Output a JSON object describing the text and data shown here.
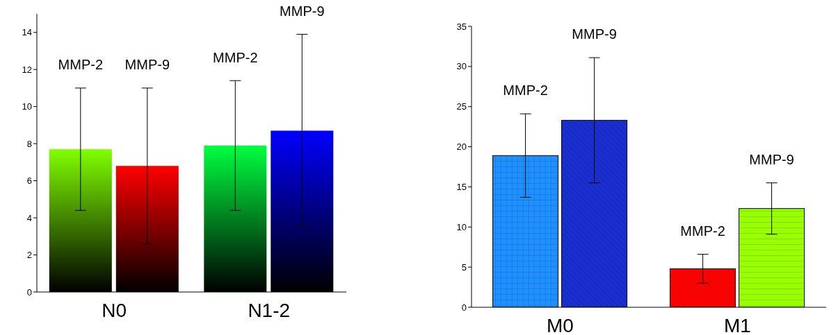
{
  "chart_data": [
    {
      "type": "bar",
      "categories": [
        "N0",
        "N1-2"
      ],
      "series": [
        {
          "colors": [
            "#80ff00",
            "#00ff40"
          ],
          "values": [
            7.7,
            7.9
          ],
          "errors": [
            [
              4.4,
              11.0
            ],
            [
              4.4,
              11.4
            ]
          ]
        },
        {
          "colors": [
            "#ff0000",
            "#0000ff"
          ],
          "values": [
            6.8,
            8.7
          ],
          "errors": [
            [
              2.6,
              11.0
            ],
            [
              3.5,
              13.9
            ]
          ]
        }
      ],
      "annotations": [
        "MMP-2",
        "MMP-9",
        "MMP-2",
        "MMP-9"
      ],
      "ylim": [
        0,
        15
      ],
      "yticks": [
        0,
        2,
        4,
        6,
        8,
        10,
        12,
        14
      ],
      "grid": false,
      "legend": false
    },
    {
      "type": "bar",
      "categories": [
        "M0",
        "M1"
      ],
      "series": [
        {
          "colors": [
            "#1e90ff",
            "#ff0000"
          ],
          "values": [
            18.9,
            4.8
          ],
          "errors": [
            [
              13.7,
              24.1
            ],
            [
              3.0,
              6.6
            ]
          ]
        },
        {
          "colors": [
            "#1a2fd0",
            "#99ff00"
          ],
          "values": [
            23.3,
            12.3
          ],
          "errors": [
            [
              15.5,
              31.1
            ],
            [
              9.1,
              15.5
            ]
          ]
        }
      ],
      "annotations": [
        "MMP-2",
        "MMP-9",
        "MMP-2",
        "MMP-9"
      ],
      "ylim": [
        0,
        35
      ],
      "yticks": [
        0,
        5,
        10,
        15,
        20,
        25,
        30,
        35
      ],
      "grid": false,
      "legend": false
    }
  ]
}
